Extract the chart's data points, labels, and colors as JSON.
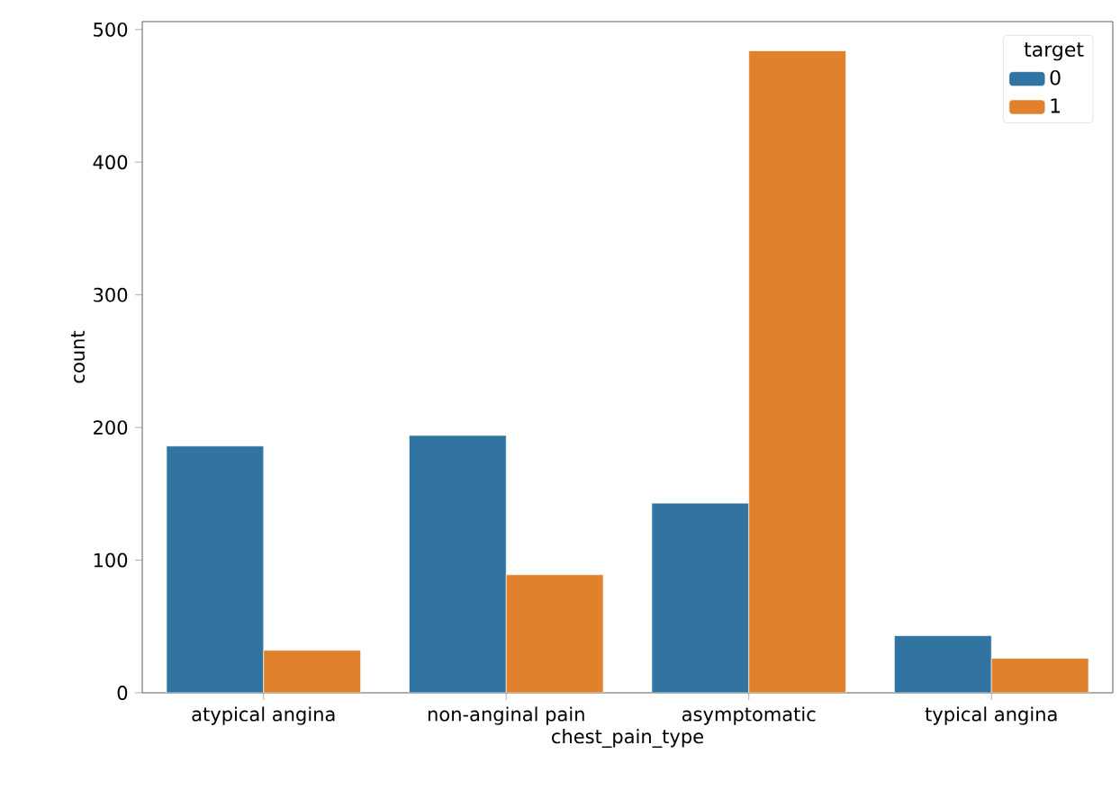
{
  "chart_data": {
    "type": "bar",
    "xlabel": "chest_pain_type",
    "ylabel": "count",
    "legend_title": "target",
    "categories": [
      "atypical angina",
      "non-anginal pain",
      "asymptomatic",
      "typical angina"
    ],
    "series": [
      {
        "name": "0",
        "color": "#3274a1",
        "values": [
          186,
          194,
          143,
          43
        ]
      },
      {
        "name": "1",
        "color": "#e1812c",
        "values": [
          32,
          89,
          484,
          26
        ]
      }
    ],
    "ylim": [
      0,
      506
    ],
    "yticks": [
      0,
      100,
      200,
      300,
      400,
      500
    ],
    "grid": false,
    "legend": "top right"
  }
}
